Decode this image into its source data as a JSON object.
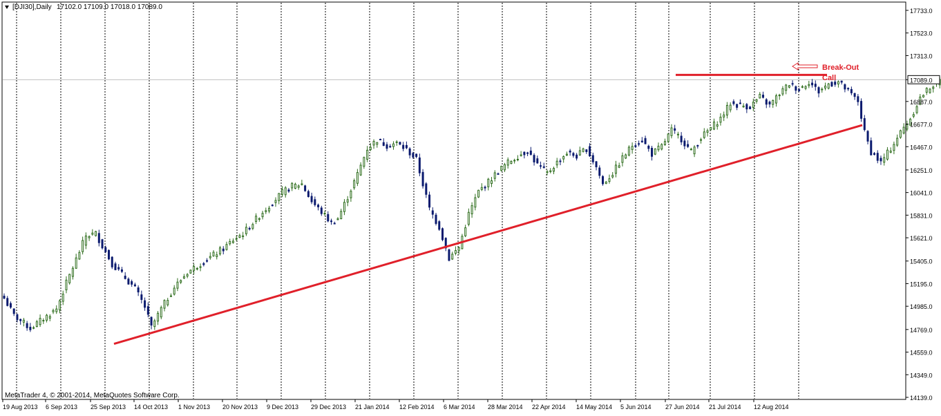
{
  "header": {
    "menu_icon": "triangle-down-icon",
    "symbol_label": "[DJI30],Daily",
    "ohlc_text": "17102.0 17109.0 17018.0 17089.0"
  },
  "footer": {
    "copyright": "MetaTrader 4, © 2001-2014, MetaQuotes Software Corp."
  },
  "colors": {
    "background": "#ffffff",
    "frame": "#000000",
    "grid": "#000000",
    "bull_candle": "#2f6e1e",
    "bear_candle": "#0a1a6e",
    "trendline": "#e0202a",
    "annotation": "#e0202a",
    "price_tag_bg": "#ffffff",
    "current_price_line": "#c0c0c0"
  },
  "annotation": {
    "line1": "Break-Out",
    "line2": "Call",
    "arrow_icon": "hollow-left-arrow-icon"
  },
  "chart_data": {
    "type": "candlestick",
    "title": "[DJI30],Daily",
    "price_axis_ticks": [
      17733.0,
      17523.0,
      17313.0,
      17089.0,
      16887.0,
      16677.0,
      16467.0,
      16251.0,
      16041.0,
      15831.0,
      15621.0,
      15405.0,
      15195.0,
      14985.0,
      14769.0,
      14559.0,
      14349.0,
      14139.0
    ],
    "current_price": 17089.0,
    "ylim": [
      14139.0,
      17733.0
    ],
    "time_axis_labels": [
      "19 Aug 2013",
      "6 Sep 2013",
      "25 Sep 2013",
      "14 Oct 2013",
      "1 Nov 2013",
      "20 Nov 2013",
      "9 Dec 2013",
      "29 Dec 2013",
      "21 Jan 2014",
      "12 Feb 2014",
      "6 Mar 2014",
      "28 Mar 2014",
      "22 Apr 2014",
      "14 May 2014",
      "5 Jun 2014",
      "27 Jun 2014",
      "21 Jul 2014",
      "12 Aug 2014"
    ],
    "grid": "dotted vertical",
    "series": [
      {
        "keypoints": [
          [
            0,
            15060
          ],
          [
            3,
            14900
          ],
          [
            8,
            14780
          ],
          [
            12,
            14870
          ],
          [
            16,
            14960
          ],
          [
            19,
            15200
          ],
          [
            22,
            15420
          ],
          [
            25,
            15640
          ],
          [
            28,
            15660
          ],
          [
            33,
            15380
          ],
          [
            37,
            15250
          ],
          [
            40,
            15150
          ],
          [
            43,
            14980
          ],
          [
            45,
            14790
          ],
          [
            48,
            14960
          ],
          [
            52,
            15160
          ],
          [
            56,
            15300
          ],
          [
            60,
            15380
          ],
          [
            63,
            15440
          ],
          [
            67,
            15520
          ],
          [
            70,
            15600
          ],
          [
            73,
            15660
          ],
          [
            76,
            15760
          ],
          [
            79,
            15860
          ],
          [
            82,
            15950
          ],
          [
            85,
            16040
          ],
          [
            88,
            16100
          ],
          [
            91,
            16120
          ],
          [
            94,
            15960
          ],
          [
            97,
            15860
          ],
          [
            100,
            15760
          ],
          [
            102,
            15800
          ],
          [
            105,
            16000
          ],
          [
            108,
            16210
          ],
          [
            111,
            16450
          ],
          [
            114,
            16530
          ],
          [
            117,
            16480
          ],
          [
            120,
            16500
          ],
          [
            123,
            16440
          ],
          [
            126,
            16350
          ],
          [
            128,
            16120
          ],
          [
            130,
            15890
          ],
          [
            133,
            15720
          ],
          [
            136,
            15430
          ],
          [
            139,
            15530
          ],
          [
            142,
            15840
          ],
          [
            145,
            16050
          ],
          [
            148,
            16140
          ],
          [
            151,
            16240
          ],
          [
            154,
            16320
          ],
          [
            157,
            16380
          ],
          [
            160,
            16430
          ],
          [
            163,
            16300
          ],
          [
            166,
            16220
          ],
          [
            169,
            16320
          ],
          [
            172,
            16410
          ],
          [
            175,
            16380
          ],
          [
            178,
            16450
          ],
          [
            181,
            16280
          ],
          [
            183,
            16120
          ],
          [
            186,
            16220
          ],
          [
            189,
            16360
          ],
          [
            192,
            16480
          ],
          [
            195,
            16530
          ],
          [
            198,
            16400
          ],
          [
            201,
            16470
          ],
          [
            204,
            16620
          ],
          [
            207,
            16540
          ],
          [
            210,
            16420
          ],
          [
            213,
            16550
          ],
          [
            216,
            16640
          ],
          [
            219,
            16730
          ],
          [
            222,
            16870
          ],
          [
            225,
            16850
          ],
          [
            228,
            16840
          ],
          [
            231,
            16930
          ],
          [
            234,
            16850
          ],
          [
            237,
            16960
          ],
          [
            240,
            17050
          ],
          [
            243,
            17000
          ],
          [
            246,
            17070
          ],
          [
            249,
            16980
          ],
          [
            252,
            17050
          ],
          [
            255,
            17070
          ],
          [
            258,
            16980
          ],
          [
            261,
            16890
          ],
          [
            263,
            16600
          ],
          [
            265,
            16420
          ],
          [
            268,
            16320
          ],
          [
            271,
            16450
          ],
          [
            274,
            16600
          ],
          [
            277,
            16730
          ],
          [
            280,
            16920
          ],
          [
            283,
            17020
          ],
          [
            286,
            17080
          ],
          [
            288,
            17089
          ]
        ]
      }
    ],
    "trendlines": [
      {
        "name": "support",
        "from": [
          "25 Sep 2013",
          14636
        ],
        "to": [
          "29 Aug 2014",
          16667
        ]
      },
      {
        "name": "resistance",
        "from": [
          "27 Jun 2014",
          17089
        ],
        "to": [
          "25 Aug 2014",
          17089
        ]
      }
    ]
  }
}
